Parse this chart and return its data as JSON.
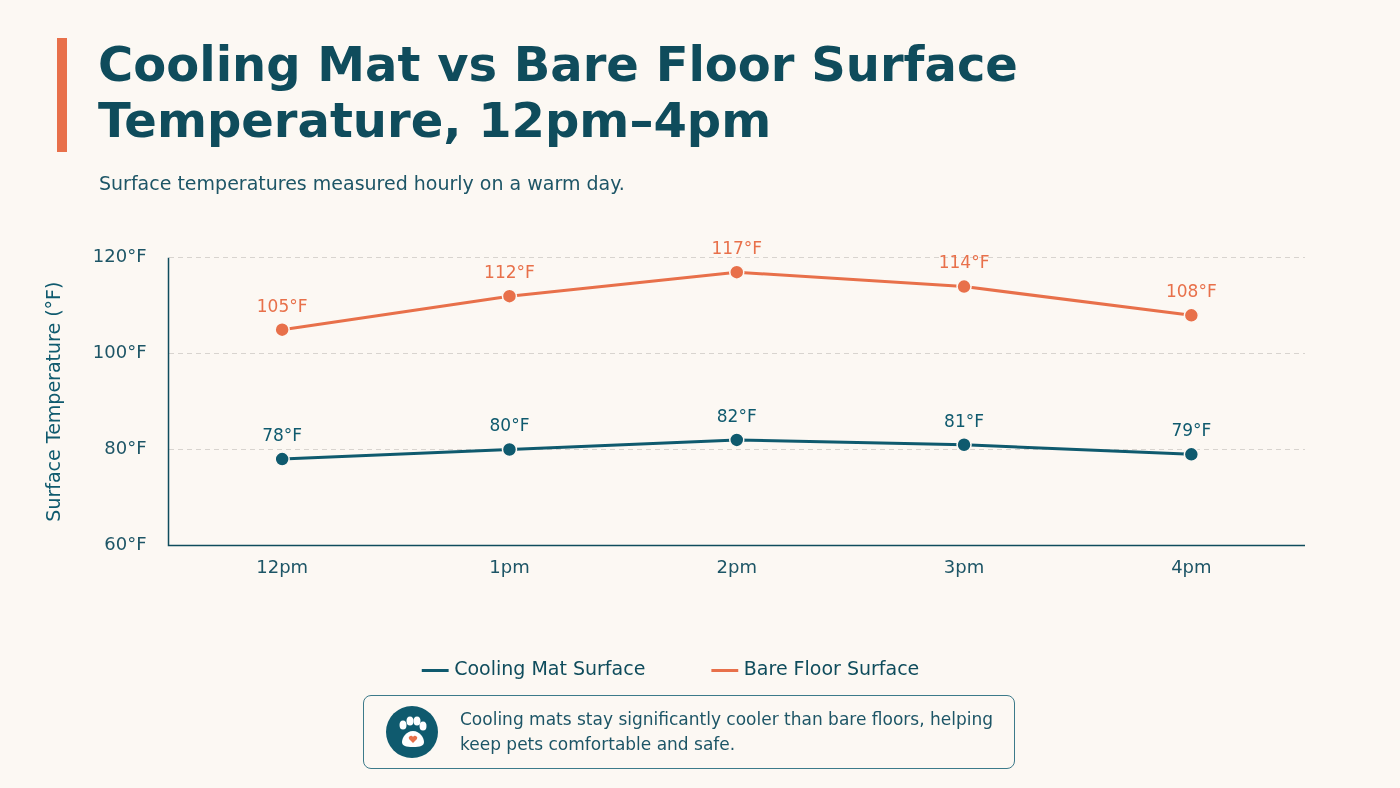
{
  "chart_data": {
    "type": "line",
    "title": "Cooling Mat vs Bare Floor Surface Temperature, 12pm–4pm",
    "subtitle": "Surface temperatures measured hourly on a warm day.",
    "ylabel": "Surface Temperature (°F)",
    "categories": [
      "12pm",
      "1pm",
      "2pm",
      "3pm",
      "4pm"
    ],
    "series": [
      {
        "name": "Cooling Mat Surface",
        "color": "#0f5a6e",
        "values": [
          78,
          80,
          82,
          81,
          79
        ],
        "value_labels": [
          "78°F",
          "80°F",
          "82°F",
          "81°F",
          "79°F"
        ]
      },
      {
        "name": "Bare Floor Surface",
        "color": "#e8704a",
        "values": [
          105,
          112,
          117,
          114,
          108
        ],
        "value_labels": [
          "105°F",
          "112°F",
          "117°F",
          "114°F",
          "108°F"
        ]
      }
    ],
    "ylim": [
      60,
      120
    ],
    "yticks": [
      {
        "value": 60,
        "label": "60°F"
      },
      {
        "value": 80,
        "label": "80°F"
      },
      {
        "value": 100,
        "label": "100°F"
      },
      {
        "value": 120,
        "label": "120°F"
      }
    ],
    "grid": "y",
    "legend": "bottom",
    "marker": "circle",
    "line_style": "solid",
    "annotations": [
      "Cooling mats stay significantly cooler than bare floors, helping keep pets comfortable and safe."
    ]
  }
}
